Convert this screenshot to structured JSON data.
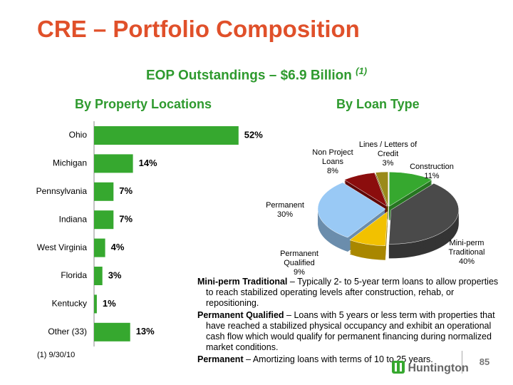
{
  "title": "CRE – Portfolio Composition",
  "subtitle": "EOP Outstandings – $6.9 Billion",
  "subtitle_note": "(1)",
  "chart_data": [
    {
      "type": "bar",
      "title": "By Property Locations",
      "categories": [
        "Ohio",
        "Michigan",
        "Pennsylvania",
        "Indiana",
        "West Virginia",
        "Florida",
        "Kentucky",
        "Other (33)"
      ],
      "values": [
        52,
        14,
        7,
        7,
        4,
        3,
        1,
        13
      ],
      "value_labels": [
        "52%",
        "14%",
        "7%",
        "7%",
        "4%",
        "3%",
        "1%",
        "13%"
      ],
      "color": "#36a82f"
    },
    {
      "type": "pie",
      "title": "By Loan Type",
      "categories": [
        "Construction",
        "Mini-perm Traditional",
        "Permanent Qualified",
        "Permanent",
        "Non Project Loans",
        "Lines / Letters of Credit"
      ],
      "values": [
        11,
        40,
        9,
        30,
        8,
        3
      ],
      "value_labels": [
        "11%",
        "40%",
        "9%",
        "30%",
        "8%",
        "3%"
      ],
      "colors": [
        "#36a82f",
        "#4a4a4a",
        "#f2c100",
        "#99c9f5",
        "#8b0d0d",
        "#9a8a1a"
      ]
    }
  ],
  "definitions": [
    {
      "term": "Mini-perm Traditional",
      "text": "– Typically 2- to 5-year term loans to allow properties to reach stabilized operating levels after construction, rehab, or repositioning."
    },
    {
      "term": "Permanent Qualified",
      "text": "– Loans with 5 years or less term with properties that have reached a stabilized physical occupancy and exhibit an operational cash flow which would qualify for permanent financing during normalized market conditions."
    },
    {
      "term": "Permanent",
      "text": "– Amortizing loans with terms of 10 to 25 years."
    }
  ],
  "footnote": "(1)   9/30/10",
  "logo": "Huntington",
  "page_number": "85"
}
